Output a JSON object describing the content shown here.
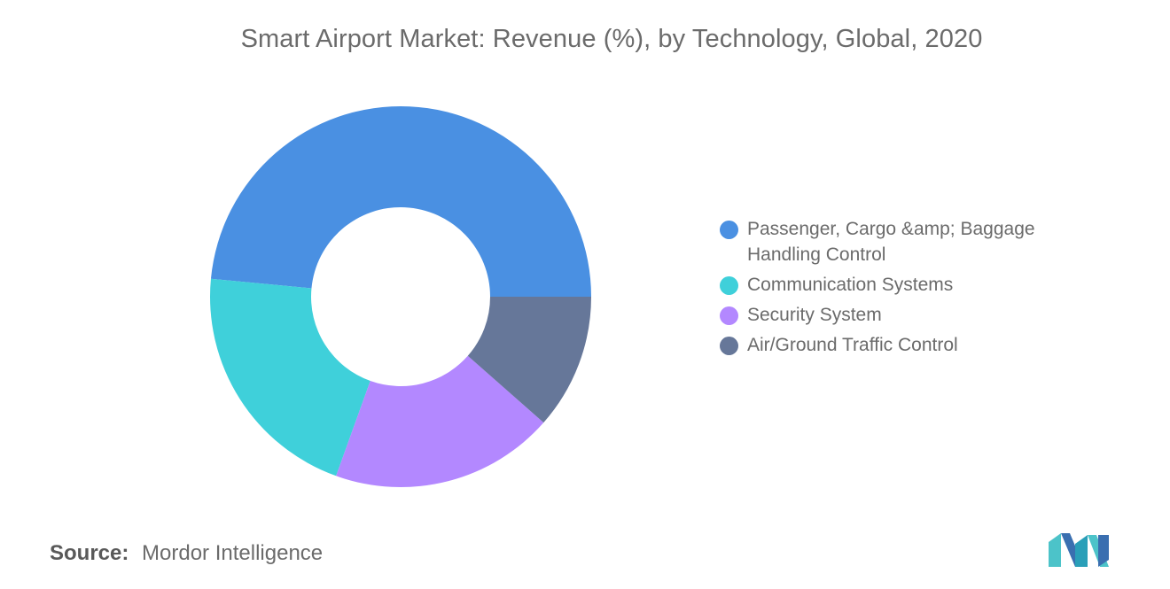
{
  "title": "Smart Airport Market: Revenue (%), by Technology, Global, 2020",
  "source": {
    "label": "Source:",
    "text": "Mordor Intelligence"
  },
  "logo": "mordor-intelligence-logo",
  "chart_data": {
    "type": "pie",
    "variant": "donut",
    "title": "Smart Airport Market: Revenue (%), by Technology, Global, 2020",
    "legend_position": "right",
    "categories": [
      "Passenger, Cargo &amp; Baggage Handling Control",
      "Communication Systems",
      "Security System",
      "Air/Ground Traffic Control"
    ],
    "values": [
      48.5,
      21.0,
      19.0,
      11.5
    ],
    "colors": [
      "#4a90e2",
      "#3fd0da",
      "#b388ff",
      "#667799"
    ]
  }
}
